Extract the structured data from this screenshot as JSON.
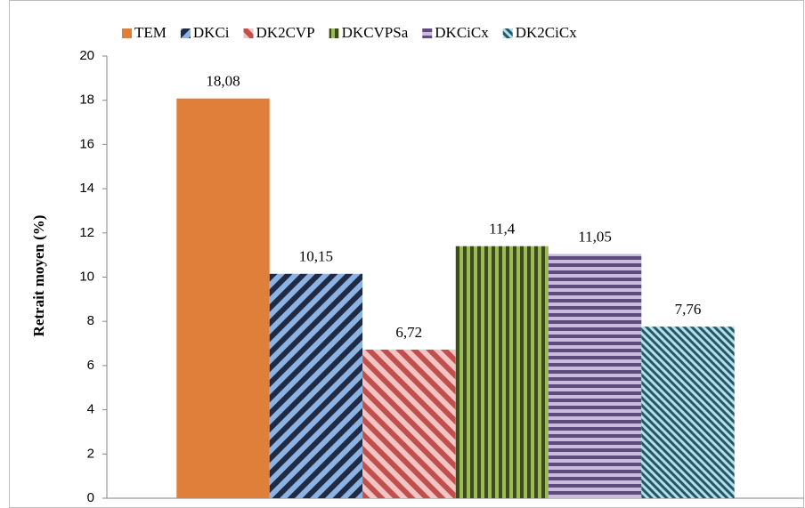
{
  "chart_data": {
    "type": "bar",
    "y_label": "Retrait moyen (%)",
    "categories": [
      null
    ],
    "series": [
      {
        "name": "TEM",
        "color": "#e07f3a",
        "pattern": "solid",
        "hatch_color": "#e07f3a",
        "values": [
          18.08
        ],
        "value_labels": [
          "18,08"
        ]
      },
      {
        "name": "DKCi",
        "color": "#8db3e2",
        "pattern": "diagonal-up",
        "hatch_color": "#1f2a44",
        "values": [
          10.15
        ],
        "value_labels": [
          "10,15"
        ]
      },
      {
        "name": "DK2CVP",
        "color": "#f2c4c4",
        "pattern": "diagonal-down",
        "hatch_color": "#c0504d",
        "values": [
          6.72
        ],
        "value_labels": [
          "6,72"
        ]
      },
      {
        "name": "DKCVPSa",
        "color": "#9bbb59",
        "pattern": "vertical",
        "hatch_color": "#3d4a1e",
        "values": [
          11.4
        ],
        "value_labels": [
          "11,4"
        ]
      },
      {
        "name": "DKCiCx",
        "color": "#c9bcdc",
        "pattern": "horizontal",
        "hatch_color": "#5f4b80",
        "values": [
          11.05
        ],
        "value_labels": [
          "11,05"
        ]
      },
      {
        "name": "DK2CiCx",
        "color": "#b7dde8",
        "pattern": "diagonal-dense",
        "hatch_color": "#215967",
        "values": [
          7.76
        ],
        "value_labels": [
          "7,76"
        ]
      }
    ],
    "ylim": [
      0,
      20
    ],
    "yticks": [
      0,
      2,
      4,
      6,
      8,
      10,
      12,
      14,
      16,
      18,
      20
    ],
    "grid": false,
    "legend": "top"
  }
}
